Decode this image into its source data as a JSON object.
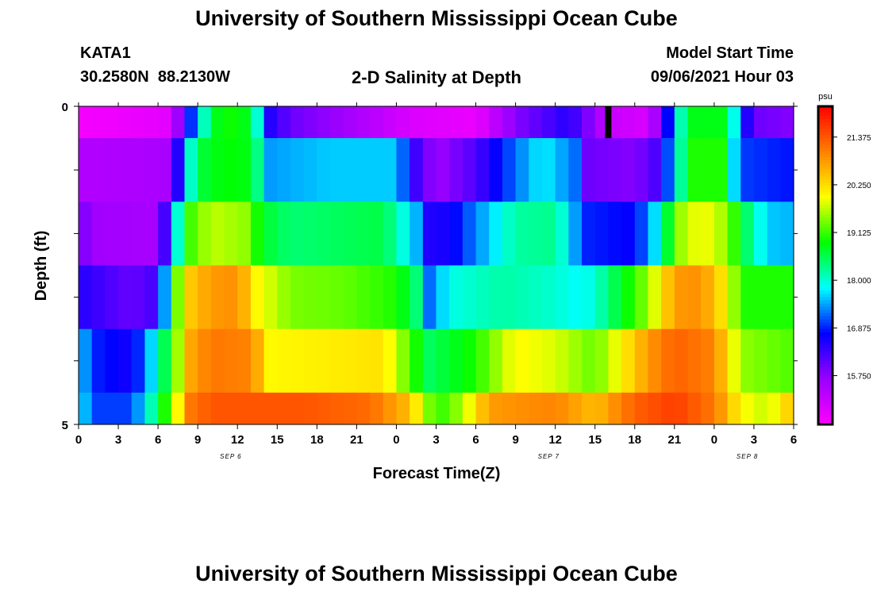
{
  "header": {
    "title": "University of Southern Mississippi Ocean Cube",
    "station_id": "KATA1",
    "coordinates": "30.2580N  88.2130W",
    "plot_title": "2-D Salinity at Depth",
    "model_start_label": "Model Start Time",
    "model_start_value": "09/06/2021 Hour 03"
  },
  "footer": {
    "title": "University of Southern Mississippi Ocean Cube"
  },
  "colors": {
    "palette": [
      "#ff00ff",
      "#9900ff",
      "#0000ff",
      "#00ffff",
      "#00ff00",
      "#ffff00",
      "#ff8000",
      "#ff0000"
    ],
    "frame": "#000000"
  },
  "chart_data": {
    "type": "heatmap",
    "xlabel": "Forecast Time(Z)",
    "ylabel": "Depth (ft)",
    "x_ticks": [
      "0",
      "3",
      "6",
      "9",
      "12",
      "15",
      "18",
      "21",
      "0",
      "3",
      "6",
      "9",
      "12",
      "15",
      "18",
      "21",
      "0",
      "3",
      "6"
    ],
    "x_range_hours": [
      0,
      54
    ],
    "day_labels": [
      {
        "label": "SEP 6",
        "hour": 11.5
      },
      {
        "label": "SEP 7",
        "hour": 35.5
      },
      {
        "label": "SEP 8",
        "hour": 50.5
      }
    ],
    "y_ticks": [
      "0",
      "5"
    ],
    "ylim": [
      0,
      5
    ],
    "current_time_hour": 40,
    "colorbar": {
      "unit": "psu",
      "ticks": [
        "21.375",
        "20.250",
        "19.125",
        "18.000",
        "16.875",
        "15.750"
      ],
      "min": 14.6,
      "max": 22.1
    },
    "rows": [
      {
        "depth_range": [
          0,
          0.5
        ],
        "values": [
          [
            0,
            14.7
          ],
          [
            7,
            14.9
          ],
          [
            8,
            16.3
          ],
          [
            9,
            17.6
          ],
          [
            10,
            18.6
          ],
          [
            11,
            19.0
          ],
          [
            12.5,
            18.8
          ],
          [
            13.5,
            18.0
          ],
          [
            14.5,
            16.5
          ],
          [
            16,
            16.0
          ],
          [
            20,
            15.6
          ],
          [
            25,
            15.0
          ],
          [
            30,
            14.8
          ],
          [
            33,
            15.8
          ],
          [
            37,
            16.5
          ],
          [
            40,
            15.2
          ],
          [
            43,
            15.0
          ],
          [
            44,
            16.0
          ],
          [
            45,
            17.5
          ],
          [
            46,
            18.8
          ],
          [
            49,
            18.8
          ],
          [
            50,
            17.0
          ],
          [
            51,
            16.0
          ],
          [
            54,
            15.8
          ]
        ]
      },
      {
        "depth_range": [
          0.5,
          1.5
        ],
        "values": [
          [
            0,
            15.4
          ],
          [
            7,
            15.5
          ],
          [
            8,
            17.5
          ],
          [
            9,
            18.6
          ],
          [
            11,
            18.9
          ],
          [
            13,
            18.8
          ],
          [
            14.5,
            17.4
          ],
          [
            19,
            17.6
          ],
          [
            24,
            17.6
          ],
          [
            25.5,
            16.3
          ],
          [
            27,
            15.6
          ],
          [
            30,
            16.2
          ],
          [
            33,
            17.2
          ],
          [
            35,
            17.8
          ],
          [
            37.5,
            17.2
          ],
          [
            38,
            16.0
          ],
          [
            42,
            15.8
          ],
          [
            43.5,
            16.2
          ],
          [
            45,
            17.5
          ],
          [
            46,
            19.0
          ],
          [
            48.5,
            19.0
          ],
          [
            50,
            17.0
          ],
          [
            54,
            16.8
          ]
        ]
      },
      {
        "depth_range": [
          1.5,
          2.5
        ],
        "values": [
          [
            0,
            16.0
          ],
          [
            1,
            15.6
          ],
          [
            6,
            15.5
          ],
          [
            7,
            17.0
          ],
          [
            8,
            19.0
          ],
          [
            10,
            19.7
          ],
          [
            12.5,
            19.5
          ],
          [
            14,
            18.7
          ],
          [
            16,
            18.4
          ],
          [
            23,
            18.6
          ],
          [
            25.5,
            17.5
          ],
          [
            26,
            16.5
          ],
          [
            28,
            16.6
          ],
          [
            30,
            17.3
          ],
          [
            33,
            18.2
          ],
          [
            36,
            18.3
          ],
          [
            37.5,
            17.4
          ],
          [
            38,
            16.9
          ],
          [
            42,
            16.7
          ],
          [
            44,
            18.0
          ],
          [
            45,
            19.4
          ],
          [
            47,
            20.0
          ],
          [
            49,
            19.5
          ],
          [
            50,
            18.7
          ],
          [
            52,
            17.6
          ],
          [
            54,
            17.5
          ]
        ]
      },
      {
        "depth_range": [
          2.5,
          3.5
        ],
        "values": [
          [
            0,
            16.5
          ],
          [
            4,
            16.0
          ],
          [
            6,
            16.3
          ],
          [
            7,
            18.5
          ],
          [
            8,
            20.3
          ],
          [
            10,
            20.8
          ],
          [
            12,
            20.9
          ],
          [
            13.5,
            20.0
          ],
          [
            16,
            19.4
          ],
          [
            20,
            19.3
          ],
          [
            24,
            19.0
          ],
          [
            25.5,
            18.4
          ],
          [
            26.5,
            17.2
          ],
          [
            28,
            17.9
          ],
          [
            32,
            18.2
          ],
          [
            36,
            18.0
          ],
          [
            38,
            17.8
          ],
          [
            39,
            18.0
          ],
          [
            43,
            19.5
          ],
          [
            45,
            20.8
          ],
          [
            47,
            20.9
          ],
          [
            49,
            20.0
          ],
          [
            50,
            19.0
          ],
          [
            54,
            19.0
          ]
        ]
      },
      {
        "depth_range": [
          3.5,
          4.5
        ],
        "values": [
          [
            0,
            17.8
          ],
          [
            1,
            16.9
          ],
          [
            4,
            16.6
          ],
          [
            5,
            17.2
          ],
          [
            7,
            19.0
          ],
          [
            8.5,
            20.7
          ],
          [
            10,
            21.1
          ],
          [
            13,
            21.0
          ],
          [
            14.5,
            20.0
          ],
          [
            19,
            20.1
          ],
          [
            23,
            20.2
          ],
          [
            25,
            19.2
          ],
          [
            26.5,
            18.5
          ],
          [
            30,
            19.0
          ],
          [
            33,
            20.0
          ],
          [
            36,
            19.8
          ],
          [
            39,
            19.3
          ],
          [
            43,
            20.8
          ],
          [
            45,
            21.3
          ],
          [
            48,
            21.0
          ],
          [
            50,
            19.5
          ],
          [
            54,
            19.2
          ]
        ]
      },
      {
        "depth_range": [
          4.5,
          5
        ],
        "values": [
          [
            0,
            18.0
          ],
          [
            1,
            17.0
          ],
          [
            4,
            17.0
          ],
          [
            6,
            18.5
          ],
          [
            7.5,
            20.0
          ],
          [
            8.5,
            21.1
          ],
          [
            10,
            21.4
          ],
          [
            17,
            21.4
          ],
          [
            22,
            21.2
          ],
          [
            25,
            20.5
          ],
          [
            27,
            19.0
          ],
          [
            29,
            19.6
          ],
          [
            31,
            20.8
          ],
          [
            36,
            21.0
          ],
          [
            39,
            20.5
          ],
          [
            42,
            21.3
          ],
          [
            45,
            21.6
          ],
          [
            48,
            21.1
          ],
          [
            50,
            20.0
          ],
          [
            52,
            19.7
          ],
          [
            54,
            20.5
          ]
        ]
      }
    ]
  }
}
